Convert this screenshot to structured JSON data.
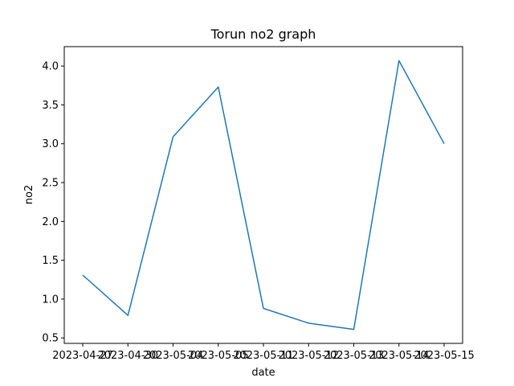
{
  "chart_data": {
    "type": "line",
    "title": "Torun no2 graph",
    "xlabel": "date",
    "ylabel": "no2",
    "categories": [
      "2023-04-27",
      "2023-04-30",
      "2023-05-04",
      "2023-05-05",
      "2023-05-11",
      "2023-05-12",
      "2023-05-13",
      "2023-05-14",
      "2023-05-15"
    ],
    "series": [
      {
        "values": [
          1.31,
          0.79,
          3.09,
          3.73,
          0.88,
          0.69,
          0.61,
          4.07,
          3.0
        ],
        "color": "#1f77b4"
      }
    ],
    "yticks": [
      0.5,
      1.0,
      1.5,
      2.0,
      2.5,
      3.0,
      3.5,
      4.0
    ],
    "ylim": [
      0.43,
      4.25
    ],
    "grid": false,
    "legend": "none"
  }
}
